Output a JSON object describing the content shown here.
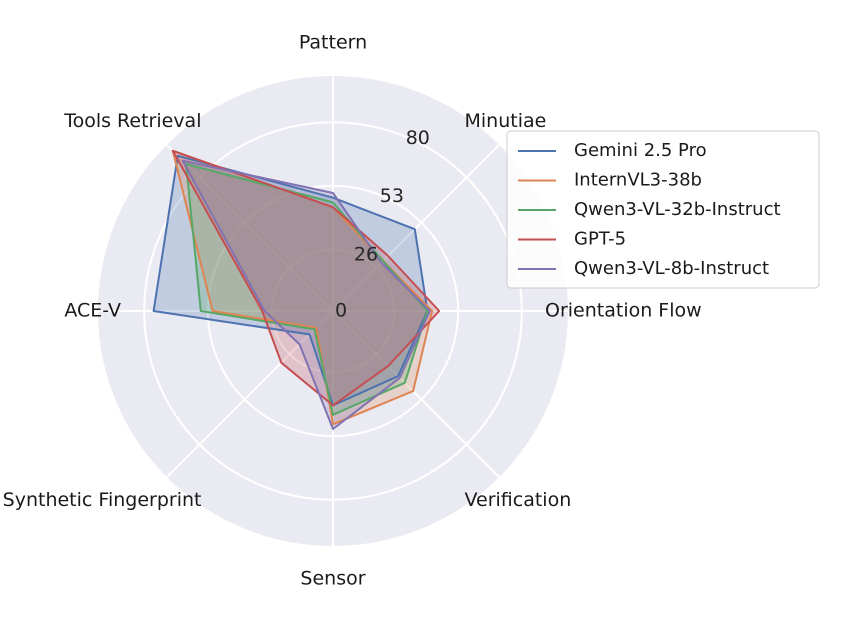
{
  "chart_data": {
    "type": "radar",
    "axes": [
      "Pattern",
      "Minutiae",
      "Orientation Flow",
      "Verification",
      "Sensor",
      "Synthetic Fingerprint",
      "ACE-V",
      "Tools Retrieval"
    ],
    "rlim": [
      0,
      100
    ],
    "radial_ticks": [
      0,
      26,
      53,
      80
    ],
    "grid": true,
    "legend": "top-right",
    "series": [
      {
        "name": "Gemini 2.5 Pro",
        "color": "#4c72b0",
        "values": [
          48,
          49,
          40,
          39,
          40,
          14,
          76,
          93
        ]
      },
      {
        "name": "InternVL3-38b",
        "color": "#dd8452",
        "values": [
          44,
          30,
          42,
          48,
          48,
          10,
          51,
          96
        ]
      },
      {
        "name": "Qwen3-VL-32b-Instruct",
        "color": "#55a868",
        "values": [
          46,
          30,
          40,
          43,
          44,
          11,
          56,
          88
        ]
      },
      {
        "name": "GPT-5",
        "color": "#c44e52",
        "values": [
          44,
          33,
          45,
          33,
          40,
          31,
          30,
          96
        ]
      },
      {
        "name": "Qwen3-VL-8b-Instruct",
        "color": "#8172b2",
        "values": [
          50,
          29,
          41,
          40,
          50,
          20,
          29,
          90
        ]
      }
    ]
  }
}
